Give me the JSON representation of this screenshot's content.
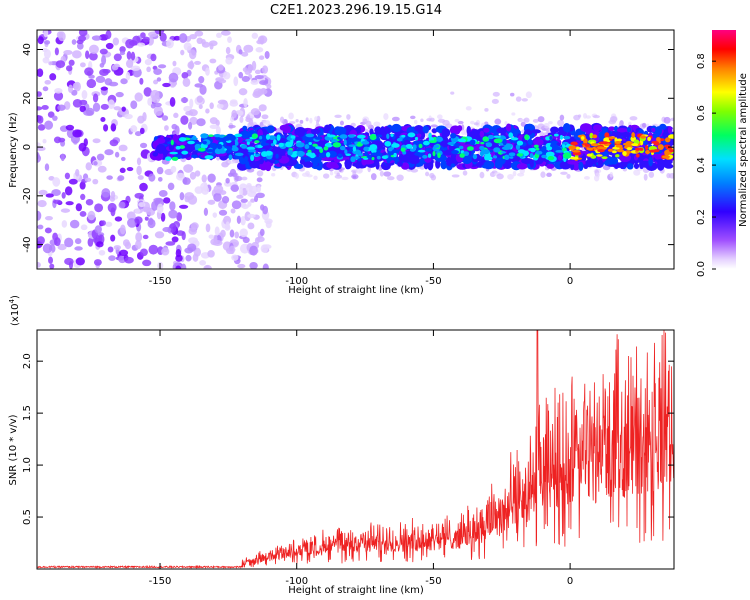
{
  "title": "C2E1.2023.296.19.15.G14",
  "colors": {
    "snr_line": "#ee2222",
    "spectro_low": "#a050ff",
    "spectro_high": "#ff0040"
  },
  "chart_data": [
    {
      "type": "heatmap",
      "xlabel": "Height of straight line (km)",
      "ylabel": "Frequency (Hz)",
      "xlim": [
        -195,
        38
      ],
      "ylim": [
        -50,
        48
      ],
      "xticks": [
        "-150",
        "-100",
        "-50",
        "0"
      ],
      "xtick_values": [
        -150,
        -100,
        -50,
        0
      ],
      "yticks": [
        "40",
        "20",
        "0",
        "-20",
        "-40"
      ],
      "ytick_values": [
        40,
        20,
        0,
        -20,
        -40
      ],
      "colorbar": {
        "label": "Normalized spectral amplitude",
        "ticks": [
          "0.0",
          "0.2",
          "0.4",
          "0.6",
          "0.8"
        ],
        "tick_values": [
          0.0,
          0.2,
          0.4,
          0.6,
          0.8
        ],
        "range": [
          0.0,
          0.92
        ],
        "colormap": "rainbow (purple → blue → cyan → green → yellow → red → pink)"
      },
      "features": {
        "noise_region_x": [
          -195,
          -125
        ],
        "signal_band_start_x": -152,
        "signal_band_center_hz": 0,
        "signal_band_halfwidth_hz": 8
      },
      "grid": false
    },
    {
      "type": "line",
      "xlabel": "Height of straight line (km)",
      "ylabel": "SNR (10 * v/v)",
      "y_multiplier_label": "(x10",
      "y_multiplier_exp": "4",
      "y_multiplier_close": ")",
      "xlim": [
        -195,
        38
      ],
      "ylim": [
        0,
        2.3
      ],
      "xticks": [
        "-150",
        "-100",
        "-50",
        "0"
      ],
      "xtick_values": [
        -150,
        -100,
        -50,
        0
      ],
      "yticks": [
        "0.5",
        "1.0",
        "1.5",
        "2.0"
      ],
      "ytick_values": [
        0.5,
        1.0,
        1.5,
        2.0
      ],
      "envelope": {
        "x": [
          -195,
          -150,
          -125,
          -115,
          -100,
          -80,
          -60,
          -40,
          -25,
          -15,
          -10,
          -5,
          0,
          10,
          20,
          30,
          38
        ],
        "y": [
          0.02,
          0.02,
          0.03,
          0.1,
          0.2,
          0.28,
          0.3,
          0.35,
          0.55,
          0.75,
          0.95,
          1.0,
          1.05,
          1.15,
          1.25,
          1.3,
          1.35
        ]
      },
      "peak": {
        "x": -12,
        "y": 2.3
      },
      "grid": false
    }
  ]
}
